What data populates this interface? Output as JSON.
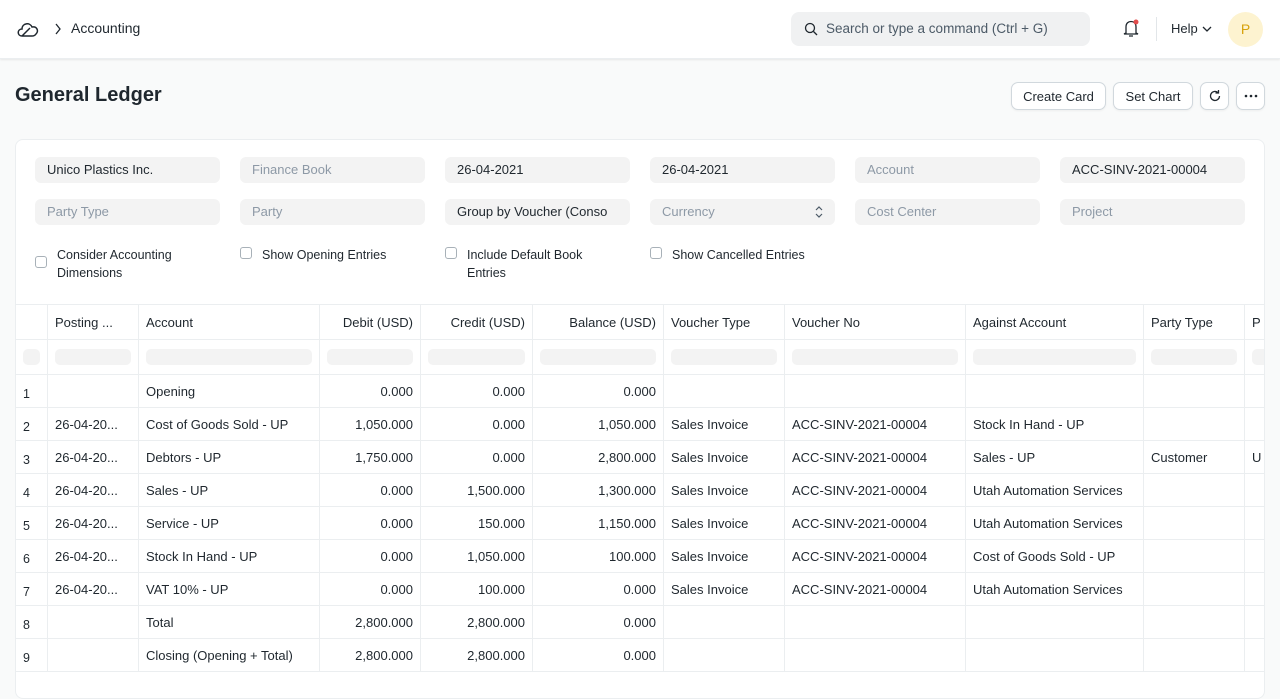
{
  "navbar": {
    "breadcrumb": "Accounting",
    "search_placeholder": "Search or type a command (Ctrl + G)",
    "help": "Help",
    "avatar": "P"
  },
  "page": {
    "title": "General Ledger",
    "buttons": [
      "Create Card",
      "Set Chart"
    ]
  },
  "filters": {
    "rows": [
      [
        {
          "text": "Unico Plastics Inc.",
          "filled": true
        },
        {
          "text": "Finance Book",
          "filled": false
        },
        {
          "text": "26-04-2021",
          "filled": true
        },
        {
          "text": "26-04-2021",
          "filled": true
        },
        {
          "text": "Account",
          "filled": false
        },
        {
          "text": "ACC-SINV-2021-00004",
          "filled": true
        }
      ],
      [
        {
          "text": "Party Type",
          "filled": false
        },
        {
          "text": "Party",
          "filled": false
        },
        {
          "text": "Group by Voucher (Conso",
          "filled": true
        },
        {
          "text": "Currency",
          "filled": false,
          "select": true
        },
        {
          "text": "Cost Center",
          "filled": false
        },
        {
          "text": "Project",
          "filled": false
        }
      ]
    ],
    "checkboxes": [
      "Consider Accounting Dimensions",
      "Show Opening Entries",
      "Include Default Book Entries",
      "Show Cancelled Entries"
    ]
  },
  "table": {
    "columns": [
      null,
      "Posting ...",
      "Account",
      "Debit (USD)",
      "Credit (USD)",
      "Balance (USD)",
      "Voucher Type",
      "Voucher No",
      "Against Account",
      "Party Type",
      "P"
    ],
    "rows": [
      [
        "1",
        null,
        "Opening",
        "0.000",
        "0.000",
        "0.000",
        null,
        null,
        null,
        null,
        null
      ],
      [
        "2",
        "26-04-20...",
        "Cost of Goods Sold - UP",
        "1,050.000",
        "0.000",
        "1,050.000",
        "Sales Invoice",
        "ACC-SINV-2021-00004",
        "Stock In Hand - UP",
        null,
        null
      ],
      [
        "3",
        "26-04-20...",
        "Debtors - UP",
        "1,750.000",
        "0.000",
        "2,800.000",
        "Sales Invoice",
        "ACC-SINV-2021-00004",
        "Sales - UP",
        "Customer",
        "U"
      ],
      [
        "4",
        "26-04-20...",
        "Sales - UP",
        "0.000",
        "1,500.000",
        "1,300.000",
        "Sales Invoice",
        "ACC-SINV-2021-00004",
        "Utah Automation Services",
        null,
        null
      ],
      [
        "5",
        "26-04-20...",
        "Service - UP",
        "0.000",
        "150.000",
        "1,150.000",
        "Sales Invoice",
        "ACC-SINV-2021-00004",
        "Utah Automation Services",
        null,
        null
      ],
      [
        "6",
        "26-04-20...",
        "Stock In Hand - UP",
        "0.000",
        "1,050.000",
        "100.000",
        "Sales Invoice",
        "ACC-SINV-2021-00004",
        "Cost of Goods Sold - UP",
        null,
        null
      ],
      [
        "7",
        "26-04-20...",
        "VAT 10% - UP",
        "0.000",
        "100.000",
        "0.000",
        "Sales Invoice",
        "ACC-SINV-2021-00004",
        "Utah Automation Services",
        null,
        null
      ],
      [
        "8",
        null,
        "Total",
        "2,800.000",
        "2,800.000",
        "0.000",
        null,
        null,
        null,
        null,
        null
      ],
      [
        "9",
        null,
        "Closing (Opening + Total)",
        "2,800.000",
        "2,800.000",
        "0.000",
        null,
        null,
        null,
        null,
        null
      ]
    ]
  }
}
